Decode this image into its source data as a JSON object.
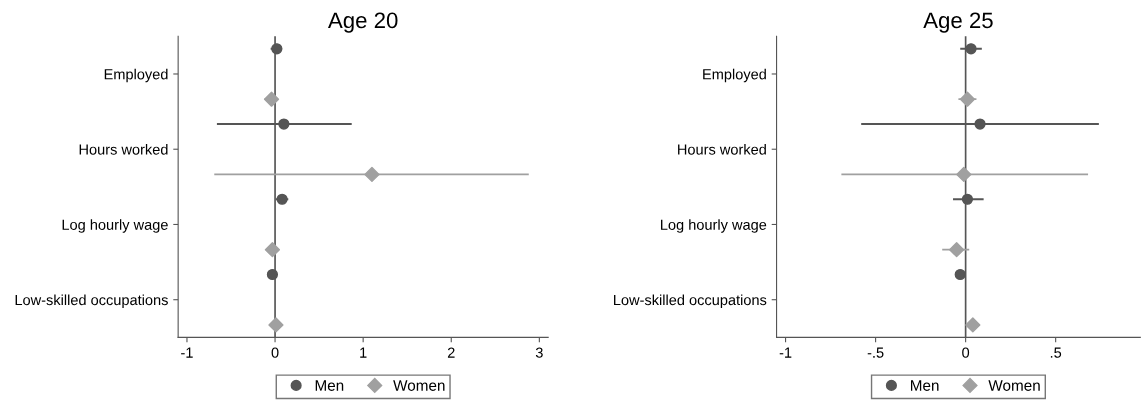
{
  "chart_data": [
    {
      "type": "scatter",
      "orientation": "horizontal",
      "title": "Age 20",
      "categories": [
        "Employed",
        "Hours worked",
        "Log hourly wage",
        "Low-skilled occupations"
      ],
      "xlim": [
        -1.1,
        3.1
      ],
      "xticks": [
        -1,
        0,
        1,
        2,
        3
      ],
      "legend": "bottom",
      "grid": false,
      "ref_lines": [
        {
          "axis": "x",
          "value": 0,
          "label": null,
          "color": "#555555"
        }
      ],
      "series": [
        {
          "name": "Men",
          "color": "#555555",
          "marker": "circle",
          "values": [
            0.02,
            0.1,
            0.08,
            -0.03
          ],
          "errors": [
            [
              -0.05,
              0.08
            ],
            [
              -0.66,
              0.87
            ],
            [
              0.01,
              0.15
            ],
            [
              -0.08,
              0.02
            ]
          ]
        },
        {
          "name": "Women",
          "color": "#a0a0a0",
          "marker": "diamond",
          "values": [
            -0.04,
            1.1,
            -0.03,
            0.01
          ],
          "errors": [
            [
              -0.12,
              0.03
            ],
            [
              -0.69,
              2.88
            ],
            [
              -0.06,
              0.0
            ],
            [
              -0.01,
              0.03
            ]
          ]
        }
      ]
    },
    {
      "type": "scatter",
      "orientation": "horizontal",
      "title": "Age 25",
      "categories": [
        "Employed",
        "Hours worked",
        "Log hourly wage",
        "Low-skilled occupations"
      ],
      "xlim": [
        -1.05,
        0.97
      ],
      "xticks": [
        -1,
        {
          "value": -0.5,
          "label": "-.5"
        },
        0,
        {
          "value": 0.5,
          "label": ".5"
        }
      ],
      "legend": "bottom",
      "grid": false,
      "ref_lines": [
        {
          "axis": "x",
          "value": 0,
          "label": null,
          "color": "#555555"
        }
      ],
      "series": [
        {
          "name": "Men",
          "color": "#555555",
          "marker": "circle",
          "values": [
            0.03,
            0.08,
            0.01,
            -0.03
          ],
          "errors": [
            [
              -0.03,
              0.09
            ],
            [
              -0.58,
              0.74
            ],
            [
              -0.07,
              0.1
            ],
            null
          ]
        },
        {
          "name": "Women",
          "color": "#a0a0a0",
          "marker": "diamond",
          "values": [
            0.01,
            -0.01,
            -0.05,
            0.04
          ],
          "errors": [
            [
              -0.04,
              0.06
            ],
            [
              -0.69,
              0.68
            ],
            [
              -0.13,
              0.02
            ],
            null
          ]
        }
      ]
    }
  ]
}
